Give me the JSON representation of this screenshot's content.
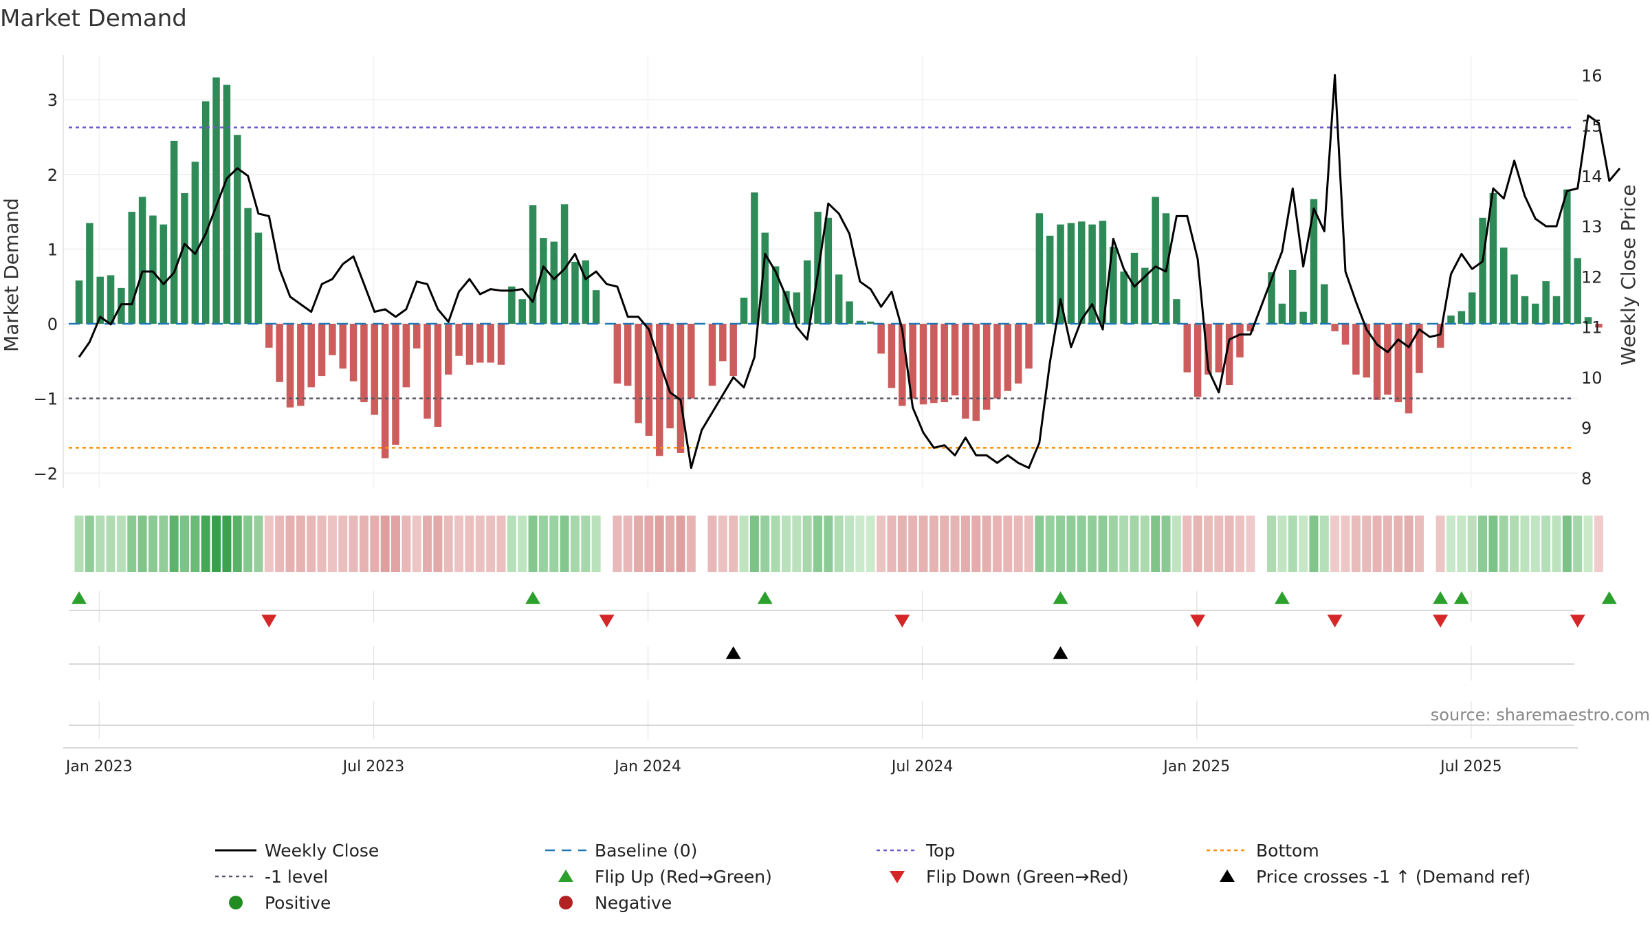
{
  "chart_data": {
    "type": "bar",
    "title": "Market Demand",
    "ylabel": "Market Demand",
    "y2label": "Weekly Close Price",
    "ylim": [
      -2.2,
      3.6
    ],
    "y2lim": [
      7.8,
      16.4
    ],
    "yticks": [
      "−2",
      "−1",
      "0",
      "1",
      "2",
      "3"
    ],
    "ytick_values": [
      -2,
      -1,
      0,
      1,
      2,
      3
    ],
    "y2ticks": [
      "8",
      "9",
      "10",
      "11",
      "12",
      "13",
      "14",
      "15",
      "16"
    ],
    "y2tick_values": [
      8,
      9,
      10,
      11,
      12,
      13,
      14,
      15,
      16
    ],
    "xticks": [
      "Jan 2023",
      "Jul 2023",
      "Jan 2024",
      "Jul 2024",
      "Jan 2025",
      "Jul 2025"
    ],
    "xtick_weeks": [
      1,
      27,
      53,
      79,
      105,
      131
    ],
    "levels": {
      "top": 2.63,
      "minus_one": -1.0,
      "bottom": -1.66,
      "baseline": 0
    },
    "demand": [
      0.58,
      1.35,
      0.63,
      0.65,
      0.48,
      1.5,
      1.7,
      1.45,
      1.33,
      2.45,
      1.75,
      2.17,
      2.98,
      3.3,
      3.2,
      2.53,
      1.55,
      1.22,
      -0.32,
      -0.78,
      -1.12,
      -1.1,
      -0.85,
      -0.7,
      -0.42,
      -0.6,
      -0.77,
      -1.05,
      -1.22,
      -1.8,
      -1.62,
      -0.85,
      -0.33,
      -1.27,
      -1.38,
      -0.68,
      -0.43,
      -0.55,
      -0.52,
      -0.52,
      -0.55,
      0.5,
      0.33,
      1.59,
      1.15,
      1.1,
      1.6,
      0.83,
      0.85,
      0.45,
      0,
      -0.8,
      -0.83,
      -1.33,
      -1.5,
      -1.77,
      -1.4,
      -1.73,
      -1.0,
      0,
      -0.83,
      -0.5,
      -0.7,
      0.35,
      1.76,
      1.22,
      0.77,
      0.44,
      0.42,
      0.85,
      1.5,
      1.42,
      0.66,
      0.3,
      0.04,
      0.03,
      -0.4,
      -0.86,
      -1.1,
      -1.0,
      -1.08,
      -1.06,
      -1.05,
      -0.96,
      -1.27,
      -1.3,
      -1.15,
      -1.0,
      -0.9,
      -0.8,
      -0.6,
      1.48,
      1.18,
      1.33,
      1.35,
      1.37,
      1.33,
      1.38,
      1.03,
      0.7,
      0.95,
      0.75,
      1.7,
      1.48,
      0.33,
      -0.65,
      -0.98,
      -0.68,
      -0.65,
      -0.82,
      -0.45,
      -0.1,
      0,
      0.69,
      0.27,
      0.72,
      0.16,
      1.67,
      0.53,
      -0.1,
      -0.28,
      -0.68,
      -0.72,
      -1.02,
      -0.95,
      -1.05,
      -1.2,
      -0.66,
      0,
      -0.32,
      0.11,
      0.17,
      0.42,
      1.42,
      1.75,
      1.02,
      0.66,
      0.37,
      0.27,
      0.57,
      0.37,
      1.8,
      0.88,
      0.09,
      -0.05
    ],
    "weekly_close": [
      10.4,
      10.7,
      11.2,
      11.05,
      11.45,
      11.45,
      12.1,
      12.1,
      11.85,
      12.08,
      12.65,
      12.45,
      12.85,
      13.4,
      13.95,
      14.15,
      14.0,
      13.25,
      13.2,
      12.15,
      11.6,
      11.45,
      11.3,
      11.85,
      11.95,
      12.25,
      12.4,
      11.85,
      11.3,
      11.35,
      11.2,
      11.35,
      11.9,
      11.85,
      11.35,
      11.1,
      11.7,
      11.95,
      11.65,
      11.75,
      11.72,
      11.72,
      11.75,
      11.5,
      12.2,
      11.95,
      12.15,
      12.45,
      11.95,
      12.1,
      11.85,
      11.8,
      11.2,
      11.2,
      10.95,
      10.3,
      9.7,
      9.55,
      8.2,
      8.95,
      9.3,
      9.65,
      10.0,
      9.8,
      10.4,
      12.45,
      12.1,
      11.6,
      11.0,
      10.75,
      12.05,
      13.45,
      13.25,
      12.85,
      11.9,
      11.75,
      11.4,
      11.7,
      10.95,
      9.4,
      8.9,
      8.6,
      8.65,
      8.45,
      8.8,
      8.45,
      8.45,
      8.3,
      8.45,
      8.3,
      8.2,
      8.7,
      10.3,
      11.55,
      10.6,
      11.15,
      11.45,
      10.95,
      12.75,
      12.15,
      11.8,
      12.0,
      12.2,
      12.1,
      13.2,
      13.2,
      12.35,
      10.15,
      9.7,
      10.75,
      10.85,
      10.85,
      11.4,
      11.95,
      12.5,
      13.75,
      12.2,
      13.35,
      12.9,
      16.0,
      12.1,
      11.5,
      10.95,
      10.65,
      10.5,
      10.75,
      10.6,
      10.95,
      10.8,
      10.85,
      12.05,
      12.45,
      12.15,
      12.3,
      13.75,
      13.55,
      14.3,
      13.6,
      13.15,
      13.0,
      13.0,
      13.7,
      13.75,
      15.2,
      15.05,
      13.9,
      14.15
    ],
    "flip_up_weeks": [
      0,
      43,
      65,
      93,
      114,
      129,
      131,
      145
    ],
    "flip_down_weeks": [
      18,
      50,
      78,
      106,
      119,
      129,
      142
    ],
    "price_cross_weeks": [
      62,
      93
    ],
    "legend": [
      {
        "label": "Weekly Close",
        "kind": "line",
        "color": "#000000"
      },
      {
        "label": "Baseline (0)",
        "kind": "dash",
        "color": "#1f77b4"
      },
      {
        "label": "Top",
        "kind": "dot",
        "color": "#6a5acd"
      },
      {
        "label": "Bottom",
        "kind": "dot",
        "color": "#ff8c00"
      },
      {
        "label": "-1 level",
        "kind": "dot",
        "color": "#555566"
      },
      {
        "label": "Flip Up (Red→Green)",
        "kind": "tri-up",
        "color": "#2ca02c"
      },
      {
        "label": "Flip Down (Green→Red)",
        "kind": "tri-down",
        "color": "#d62728"
      },
      {
        "label": "Price crosses -1 ↑ (Demand ref)",
        "kind": "tri-up",
        "color": "#000000"
      },
      {
        "label": "Positive",
        "kind": "circle",
        "color": "#228b22"
      },
      {
        "label": "Negative",
        "kind": "circle",
        "color": "#b22222"
      }
    ],
    "source": "source: sharemaestro.com"
  },
  "colors": {
    "positive_bar": "#2e8b57",
    "negative_bar": "#cd5c5c",
    "price_line": "#000000"
  }
}
